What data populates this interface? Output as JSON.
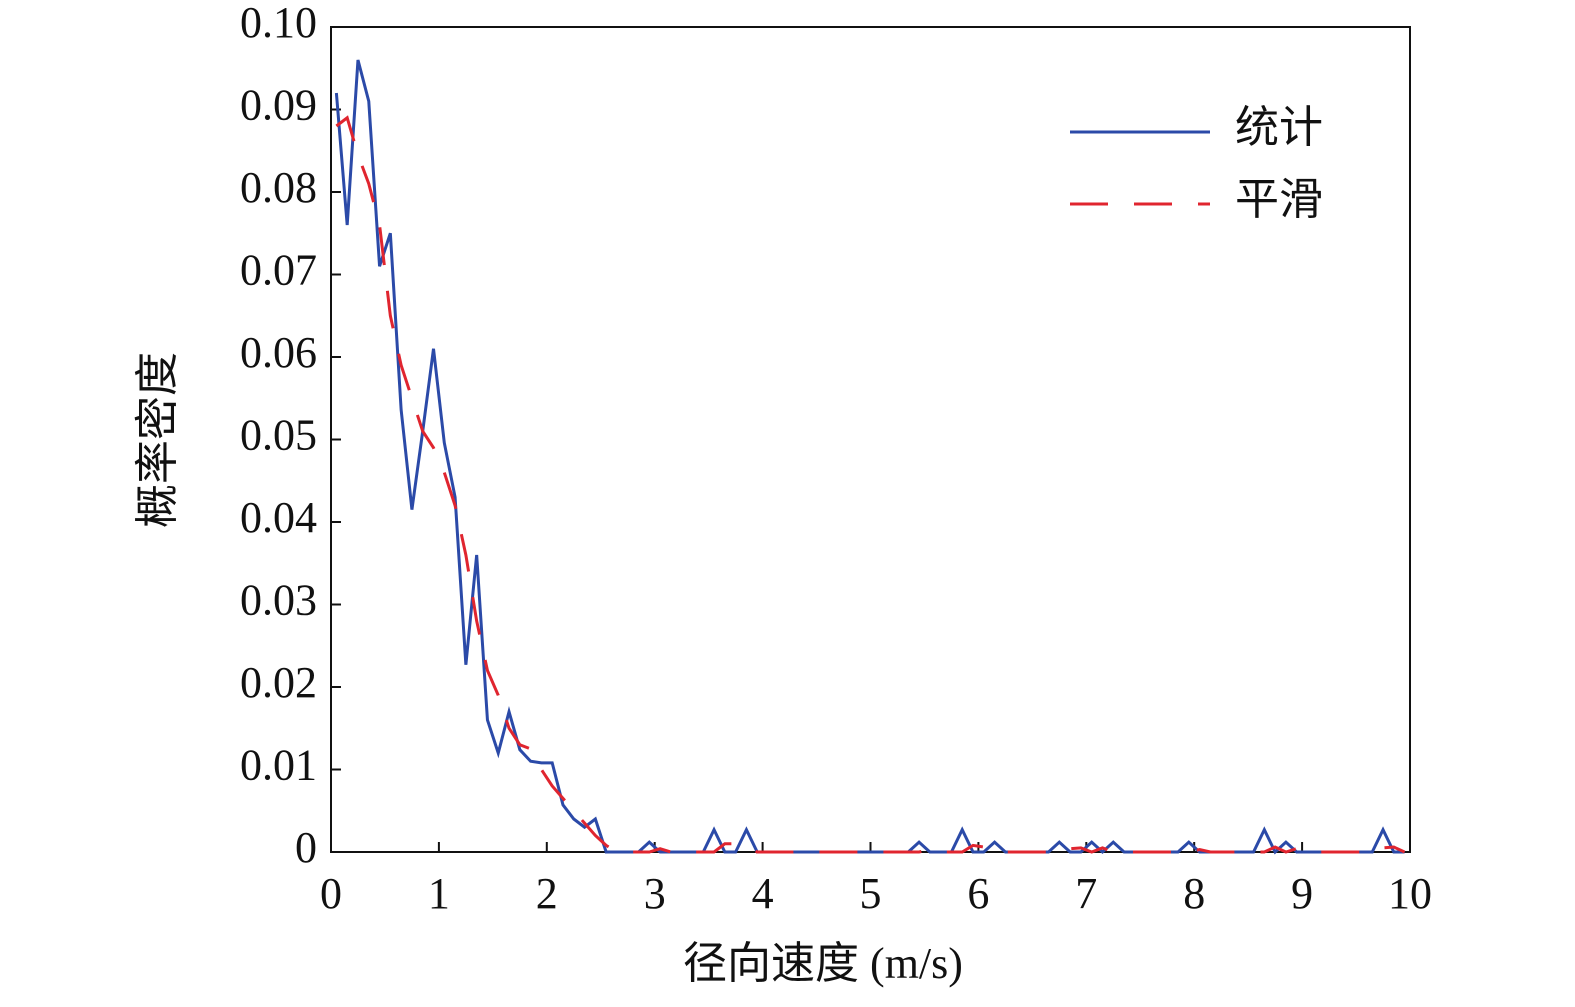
{
  "chart_data": {
    "type": "line",
    "xlabel": "径向速度 (m/s)",
    "ylabel": "概率密度",
    "x": [
      0.05,
      0.15,
      0.25,
      0.35,
      0.45,
      0.55,
      0.65,
      0.75,
      0.85,
      0.95,
      1.05,
      1.15,
      1.25,
      1.35,
      1.45,
      1.55,
      1.65,
      1.75,
      1.85,
      1.95,
      2.05,
      2.15,
      2.25,
      2.35,
      2.45,
      2.55,
      2.65,
      2.75,
      2.85,
      2.95,
      3.05,
      3.15,
      3.25,
      3.35,
      3.45,
      3.55,
      3.65,
      3.75,
      3.85,
      3.95,
      4.05,
      4.15,
      4.25,
      4.35,
      4.45,
      4.55,
      4.65,
      4.75,
      4.85,
      4.95,
      5.05,
      5.15,
      5.25,
      5.35,
      5.45,
      5.55,
      5.65,
      5.75,
      5.85,
      5.95,
      6.05,
      6.15,
      6.25,
      6.35,
      6.45,
      6.55,
      6.65,
      6.75,
      6.85,
      6.95,
      7.05,
      7.15,
      7.25,
      7.35,
      7.45,
      7.55,
      7.65,
      7.75,
      7.85,
      7.95,
      8.05,
      8.15,
      8.25,
      8.35,
      8.45,
      8.55,
      8.65,
      8.75,
      8.85,
      8.95,
      9.05,
      9.15,
      9.25,
      9.35,
      9.45,
      9.55,
      9.65,
      9.75,
      9.85,
      9.95
    ],
    "series": [
      {
        "name": "统计",
        "color": "#2b4aa8",
        "dash": false,
        "values": [
          0.092,
          0.076,
          0.096,
          0.091,
          0.071,
          0.075,
          0.0536,
          0.0415,
          0.051,
          0.061,
          0.0496,
          0.043,
          0.0227,
          0.036,
          0.016,
          0.012,
          0.017,
          0.0124,
          0.011,
          0.0108,
          0.0108,
          0.0057,
          0.004,
          0.003,
          0.004,
          0,
          0,
          0,
          0,
          0.0012,
          0,
          0,
          0,
          0,
          0,
          0.0027,
          0,
          0,
          0.0027,
          0,
          0,
          0,
          0,
          0,
          0,
          0,
          0,
          0,
          0,
          0,
          0,
          0,
          0,
          0,
          0.0012,
          0,
          0,
          0,
          0.0027,
          0,
          0,
          0.0012,
          0,
          0,
          0,
          0,
          0,
          0.0012,
          0,
          0,
          0.0012,
          0,
          0.0012,
          0,
          0,
          0,
          0,
          0,
          0,
          0.0012,
          0,
          0,
          0,
          0,
          0,
          0,
          0.0027,
          0,
          0.0012,
          0,
          0,
          0,
          0,
          0,
          0,
          0,
          0,
          0.0027,
          0,
          0
        ]
      },
      {
        "name": "平滑",
        "color": "#e0252f",
        "dash": true,
        "values": [
          0.088,
          0.089,
          0.0845,
          0.081,
          0.076,
          0.065,
          0.059,
          0.055,
          0.051,
          0.049,
          0.046,
          0.042,
          0.036,
          0.028,
          0.022,
          0.019,
          0.015,
          0.013,
          0.0125,
          0.01,
          0.008,
          0.0065,
          0.005,
          0.0035,
          0.002,
          0.0008,
          0,
          0,
          0,
          0,
          0.0004,
          0,
          0,
          0,
          0,
          0,
          0.001,
          0.001,
          0.0008,
          0,
          0,
          0,
          0,
          0,
          0,
          0,
          0,
          0,
          0,
          0,
          0,
          0,
          0,
          0,
          0,
          0.0003,
          0,
          0,
          0,
          0.0008,
          0.0006,
          0,
          0,
          0,
          0,
          0,
          0,
          0,
          0.0004,
          0.0005,
          0,
          0.0005,
          0,
          0,
          0,
          0,
          0,
          0,
          0,
          0,
          0.0003,
          0,
          0,
          0,
          0,
          0,
          0,
          0.0006,
          0,
          0.0004,
          0,
          0,
          0,
          0,
          0,
          0,
          0,
          0.0005,
          0.0006,
          0
        ]
      }
    ],
    "xlim": [
      0,
      10
    ],
    "xticks": [
      0,
      1,
      2,
      3,
      4,
      5,
      6,
      7,
      8,
      9,
      10
    ],
    "ylim": [
      0,
      0.1
    ],
    "yticks": [
      0,
      0.01,
      0.02,
      0.03,
      0.04,
      0.05,
      0.06,
      0.07,
      0.08,
      0.09,
      {
        "value": 0.1,
        "label": "0.10"
      }
    ],
    "legend": "upper right",
    "grid": false
  }
}
